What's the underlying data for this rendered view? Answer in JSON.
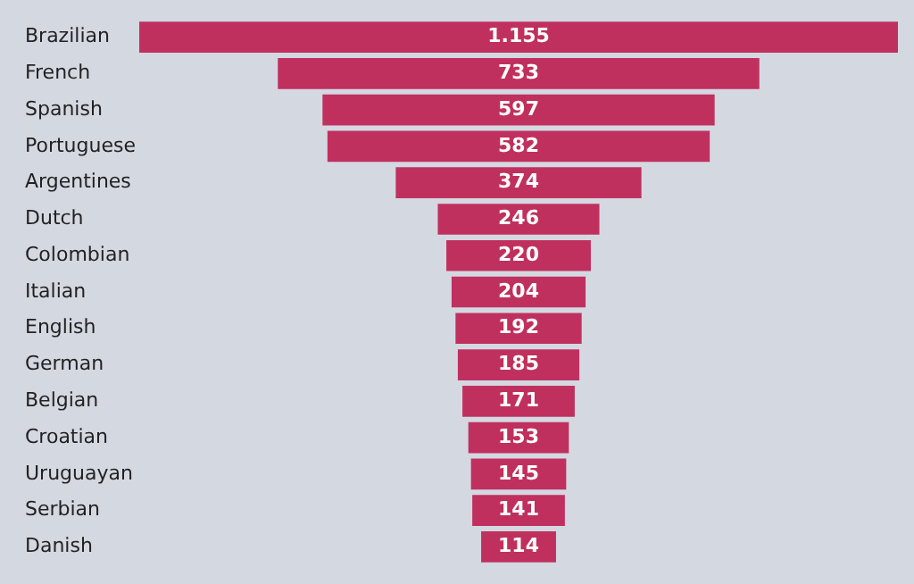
{
  "chart_data": {
    "type": "other",
    "categories": [
      "Brazilian",
      "French",
      "Spanish",
      "Portuguese",
      "Argentines",
      "Dutch",
      "Colombian",
      "Italian",
      "English",
      "German",
      "Belgian",
      "Croatian",
      "Uruguayan",
      "Serbian",
      "Danish"
    ],
    "values": [
      1155,
      733,
      597,
      582,
      374,
      246,
      220,
      204,
      192,
      185,
      171,
      153,
      145,
      141,
      114
    ],
    "value_labels": [
      "1.155",
      "733",
      "597",
      "582",
      "374",
      "246",
      "220",
      "204",
      "192",
      "185",
      "171",
      "153",
      "145",
      "141",
      "114"
    ],
    "color": "#c0305f"
  }
}
